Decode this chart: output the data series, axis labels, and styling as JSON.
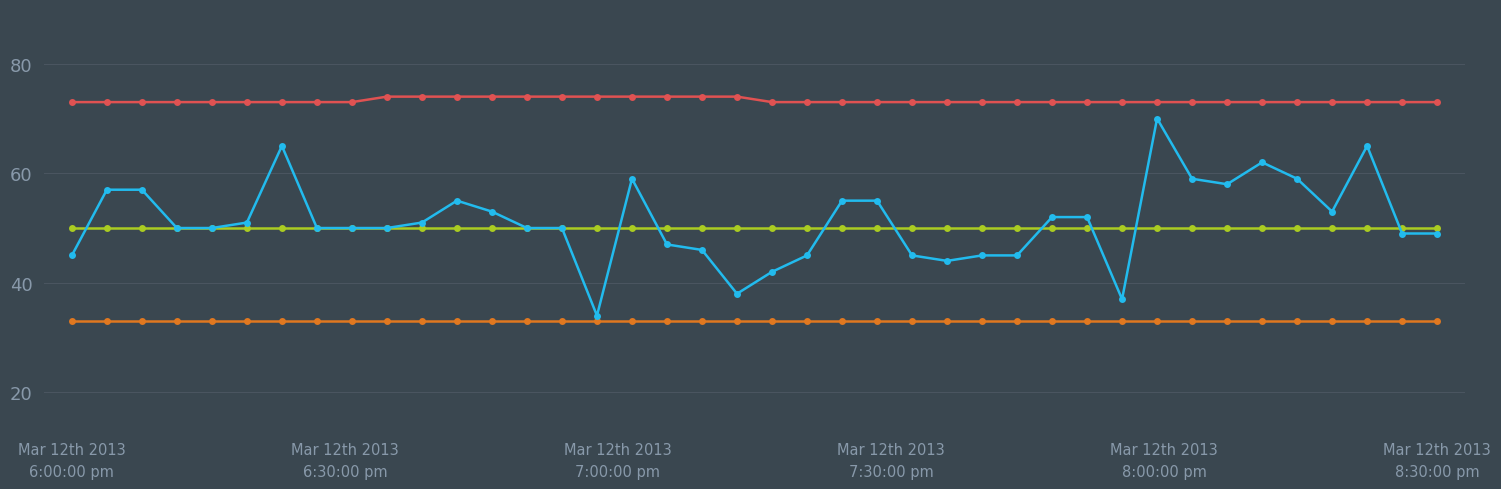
{
  "background_color": "#3a4750",
  "plot_bg_color": "#3a4750",
  "grid_color": "#4a5560",
  "text_color": "#8899aa",
  "n_points": 40,
  "x_tick_labels": [
    "Mar 12th 2013\n6:00:00 pm",
    "Mar 12th 2013\n6:30:00 pm",
    "Mar 12th 2013\n7:00:00 pm",
    "Mar 12th 2013\n7:30:00 pm",
    "Mar 12th 2013\n8:00:00 pm",
    "Mar 12th 2013\n8:30:00 pm"
  ],
  "ylim": [
    14,
    90
  ],
  "yticks": [
    20,
    40,
    60,
    80
  ],
  "series": {
    "red": {
      "color": "#e05252",
      "values": [
        73,
        73,
        73,
        73,
        73,
        73,
        73,
        73,
        73,
        74,
        74,
        74,
        74,
        74,
        74,
        74,
        74,
        74,
        74,
        74,
        73,
        73,
        73,
        73,
        73,
        73,
        73,
        73,
        73,
        73,
        73,
        73,
        73,
        73,
        73,
        73,
        73,
        73,
        73,
        73
      ]
    },
    "yellow_green": {
      "color": "#aacc22",
      "values": [
        50,
        50,
        50,
        50,
        50,
        50,
        50,
        50,
        50,
        50,
        50,
        50,
        50,
        50,
        50,
        50,
        50,
        50,
        50,
        50,
        50,
        50,
        50,
        50,
        50,
        50,
        50,
        50,
        50,
        50,
        50,
        50,
        50,
        50,
        50,
        50,
        50,
        50,
        50,
        50
      ]
    },
    "orange": {
      "color": "#e07820",
      "values": [
        33,
        33,
        33,
        33,
        33,
        33,
        33,
        33,
        33,
        33,
        33,
        33,
        33,
        33,
        33,
        33,
        33,
        33,
        33,
        33,
        33,
        33,
        33,
        33,
        33,
        33,
        33,
        33,
        33,
        33,
        33,
        33,
        33,
        33,
        33,
        33,
        33,
        33,
        33,
        33
      ]
    },
    "blue": {
      "color": "#22bbee",
      "values": [
        45,
        57,
        57,
        50,
        50,
        51,
        65,
        50,
        50,
        50,
        51,
        55,
        53,
        50,
        50,
        34,
        59,
        47,
        46,
        38,
        42,
        45,
        55,
        55,
        45,
        44,
        45,
        45,
        52,
        52,
        37,
        70,
        59,
        58,
        62,
        59,
        53,
        65,
        49,
        49
      ]
    }
  }
}
